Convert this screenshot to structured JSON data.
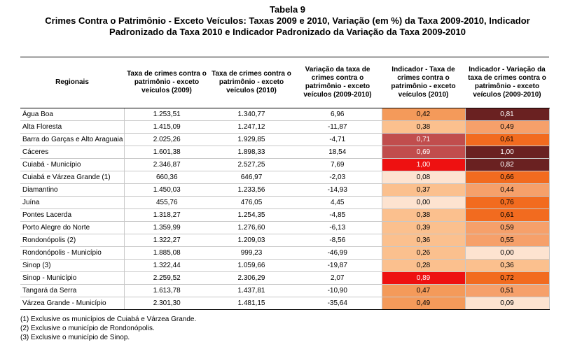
{
  "title": "Tabela 9",
  "subtitle_line1": "Crimes Contra o Patrimônio - Exceto Veículos: Taxas 2009 e 2010, Variação (em %) da Taxa 2009-2010, Indicador",
  "subtitle_line2": "Padronizado da Taxa 2010 e Indicador Padronizado da Variação da Taxa 2009-2010",
  "headers": {
    "regionais": "Regionais",
    "taxa2009": "Taxa de crimes contra o patrimônio - exceto veículos (2009)",
    "taxa2010": "Taxa de crimes contra o patrimônio - exceto veículos (2010)",
    "variacao": "Variação da taxa de crimes contra o patrimônio - exceto veículos (2009-2010)",
    "ind_taxa": "Indicador - Taxa de crimes contra o patrimônio - exceto veículos (2010)",
    "ind_var": "Indicador - Variação da taxa de crimes contra o patrimônio - exceto veículos (2009-2010)"
  },
  "rows": [
    {
      "regional": "Água Boa",
      "taxa2009": "1.253,51",
      "taxa2010": "1.340,77",
      "variacao": "6,96",
      "ind_taxa": "0,42",
      "ind_var": "0,81",
      "ind_taxa_color": "#f49a5a",
      "ind_var_color": "#6a2121"
    },
    {
      "regional": "Alta Floresta",
      "taxa2009": "1.415,09",
      "taxa2010": "1.247,12",
      "variacao": "-11,87",
      "ind_taxa": "0,38",
      "ind_var": "0,49",
      "ind_taxa_color": "#fbc08e",
      "ind_var_color": "#f6a06a"
    },
    {
      "regional": "Barra do Garças e Alto Araguaia",
      "taxa2009": "2.025,26",
      "taxa2010": "1.929,85",
      "variacao": "-4,71",
      "ind_taxa": "0,71",
      "ind_var": "0,61",
      "ind_taxa_color": "#c14d4d",
      "ind_var_color": "#f26b1f"
    },
    {
      "regional": "Cáceres",
      "taxa2009": "1.601,38",
      "taxa2010": "1.898,33",
      "variacao": "18,54",
      "ind_taxa": "0,69",
      "ind_var": "1,00",
      "ind_taxa_color": "#c14d4d",
      "ind_var_color": "#6a2121"
    },
    {
      "regional": "Cuiabá - Município",
      "taxa2009": "2.346,87",
      "taxa2010": "2.527,25",
      "variacao": "7,69",
      "ind_taxa": "1,00",
      "ind_var": "0,82",
      "ind_taxa_color": "#ee1111",
      "ind_var_color": "#6a2121"
    },
    {
      "regional": "Cuiabá e Várzea Grande (1)",
      "taxa2009": "660,36",
      "taxa2010": "646,97",
      "variacao": "-2,03",
      "ind_taxa": "0,08",
      "ind_var": "0,66",
      "ind_taxa_color": "#fde3d0",
      "ind_var_color": "#f26b1f"
    },
    {
      "regional": "Diamantino",
      "taxa2009": "1.450,03",
      "taxa2010": "1.233,56",
      "variacao": "-14,93",
      "ind_taxa": "0,37",
      "ind_var": "0,44",
      "ind_taxa_color": "#fbc08e",
      "ind_var_color": "#f6a06a"
    },
    {
      "regional": "Juína",
      "taxa2009": "455,76",
      "taxa2010": "476,05",
      "variacao": "4,45",
      "ind_taxa": "0,00",
      "ind_var": "0,76",
      "ind_taxa_color": "#fde3d0",
      "ind_var_color": "#f26b1f"
    },
    {
      "regional": "Pontes Lacerda",
      "taxa2009": "1.318,27",
      "taxa2010": "1.254,35",
      "variacao": "-4,85",
      "ind_taxa": "0,38",
      "ind_var": "0,61",
      "ind_taxa_color": "#fbc08e",
      "ind_var_color": "#f26b1f"
    },
    {
      "regional": "Porto Alegre do Norte",
      "taxa2009": "1.359,99",
      "taxa2010": "1.276,60",
      "variacao": "-6,13",
      "ind_taxa": "0,39",
      "ind_var": "0,59",
      "ind_taxa_color": "#fbc08e",
      "ind_var_color": "#f6a06a"
    },
    {
      "regional": "Rondonópolis (2)",
      "taxa2009": "1.322,27",
      "taxa2010": "1.209,03",
      "variacao": "-8,56",
      "ind_taxa": "0,36",
      "ind_var": "0,55",
      "ind_taxa_color": "#fbc08e",
      "ind_var_color": "#f6a06a"
    },
    {
      "regional": "Rondonópolis - Município",
      "taxa2009": "1.885,08",
      "taxa2010": "999,23",
      "variacao": "-46,99",
      "ind_taxa": "0,26",
      "ind_var": "0,00",
      "ind_taxa_color": "#fbc08e",
      "ind_var_color": "#fde3d0"
    },
    {
      "regional": "Sinop (3)",
      "taxa2009": "1.322,44",
      "taxa2010": "1.059,66",
      "variacao": "-19,87",
      "ind_taxa": "0,28",
      "ind_var": "0,36",
      "ind_taxa_color": "#fbc08e",
      "ind_var_color": "#fbc08e"
    },
    {
      "regional": "Sinop - Município",
      "taxa2009": "2.259,52",
      "taxa2010": "2.306,29",
      "variacao": "2,07",
      "ind_taxa": "0,89",
      "ind_var": "0,72",
      "ind_taxa_color": "#ee1111",
      "ind_var_color": "#f26b1f"
    },
    {
      "regional": "Tangará da Serra",
      "taxa2009": "1.613,78",
      "taxa2010": "1.437,81",
      "variacao": "-10,90",
      "ind_taxa": "0,47",
      "ind_var": "0,51",
      "ind_taxa_color": "#f49a5a",
      "ind_var_color": "#f6a06a"
    },
    {
      "regional": "Várzea Grande - Município",
      "taxa2009": "2.301,30",
      "taxa2010": "1.481,15",
      "variacao": "-35,64",
      "ind_taxa": "0,49",
      "ind_var": "0,09",
      "ind_taxa_color": "#f49a5a",
      "ind_var_color": "#fde3d0"
    }
  ],
  "notes": [
    "(1) Exclusive os municípios de Cuiabá e Várzea Grande.",
    "(2) Exclusive o município de Rondonópolis.",
    "(3) Exclusive o município de Sinop."
  ]
}
